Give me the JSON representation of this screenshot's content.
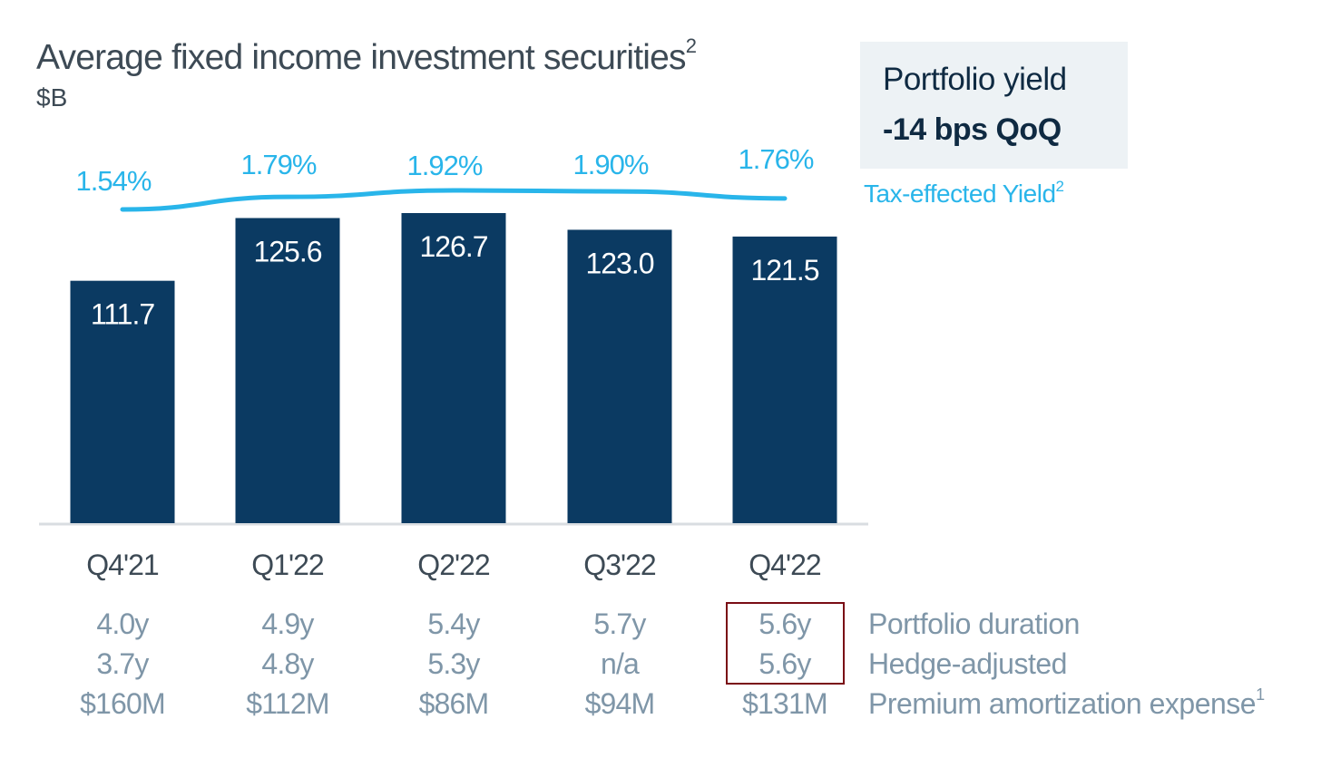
{
  "header": {
    "title": "Average fixed income investment securities",
    "title_footnote": "2",
    "unit": "$B"
  },
  "yield_box": {
    "label": "Portfolio yield",
    "value": "-14 bps QoQ"
  },
  "legend": {
    "line_label": "Tax-effected Yield",
    "line_footnote": "2"
  },
  "colors": {
    "bar": "#0b3a62",
    "line": "#29b5ea",
    "axis": "#d9dde1",
    "highlight_border": "#7a0d15",
    "muted_text": "#7f96a8",
    "dark_text": "#3d4a55"
  },
  "chart_data": {
    "type": "bar",
    "title": "Average fixed income investment securities",
    "ylabel": "$B",
    "xlabel": "",
    "categories": [
      "Q4'21",
      "Q1'22",
      "Q2'22",
      "Q3'22",
      "Q4'22"
    ],
    "series": [
      {
        "name": "Average fixed income investment securities ($B)",
        "type": "bar",
        "values": [
          111.7,
          125.6,
          126.7,
          123.0,
          121.5
        ],
        "labels": [
          "111.7",
          "125.6",
          "126.7",
          "123.0",
          "121.5"
        ]
      },
      {
        "name": "Tax-effected Yield",
        "type": "line",
        "values": [
          1.54,
          1.79,
          1.92,
          1.9,
          1.76
        ],
        "labels": [
          "1.54%",
          "1.79%",
          "1.92%",
          "1.90%",
          "1.76%"
        ]
      }
    ],
    "ylim": [
      0,
      126.7
    ],
    "grid": false,
    "legend_position": "right"
  },
  "table": {
    "rows": [
      {
        "label": "Portfolio duration",
        "footnote": "",
        "values": [
          "4.0y",
          "4.9y",
          "5.4y",
          "5.7y",
          "5.6y"
        ]
      },
      {
        "label": "Hedge-adjusted",
        "footnote": "",
        "values": [
          "3.7y",
          "4.8y",
          "5.3y",
          "n/a",
          "5.6y"
        ]
      },
      {
        "label": "Premium amortization expense",
        "footnote": "1",
        "values": [
          "$160M",
          "$112M",
          "$86M",
          "$94M",
          "$131M"
        ]
      }
    ],
    "highlighted_column": "Q4'22",
    "highlighted_rows": [
      "Portfolio duration",
      "Hedge-adjusted"
    ]
  }
}
